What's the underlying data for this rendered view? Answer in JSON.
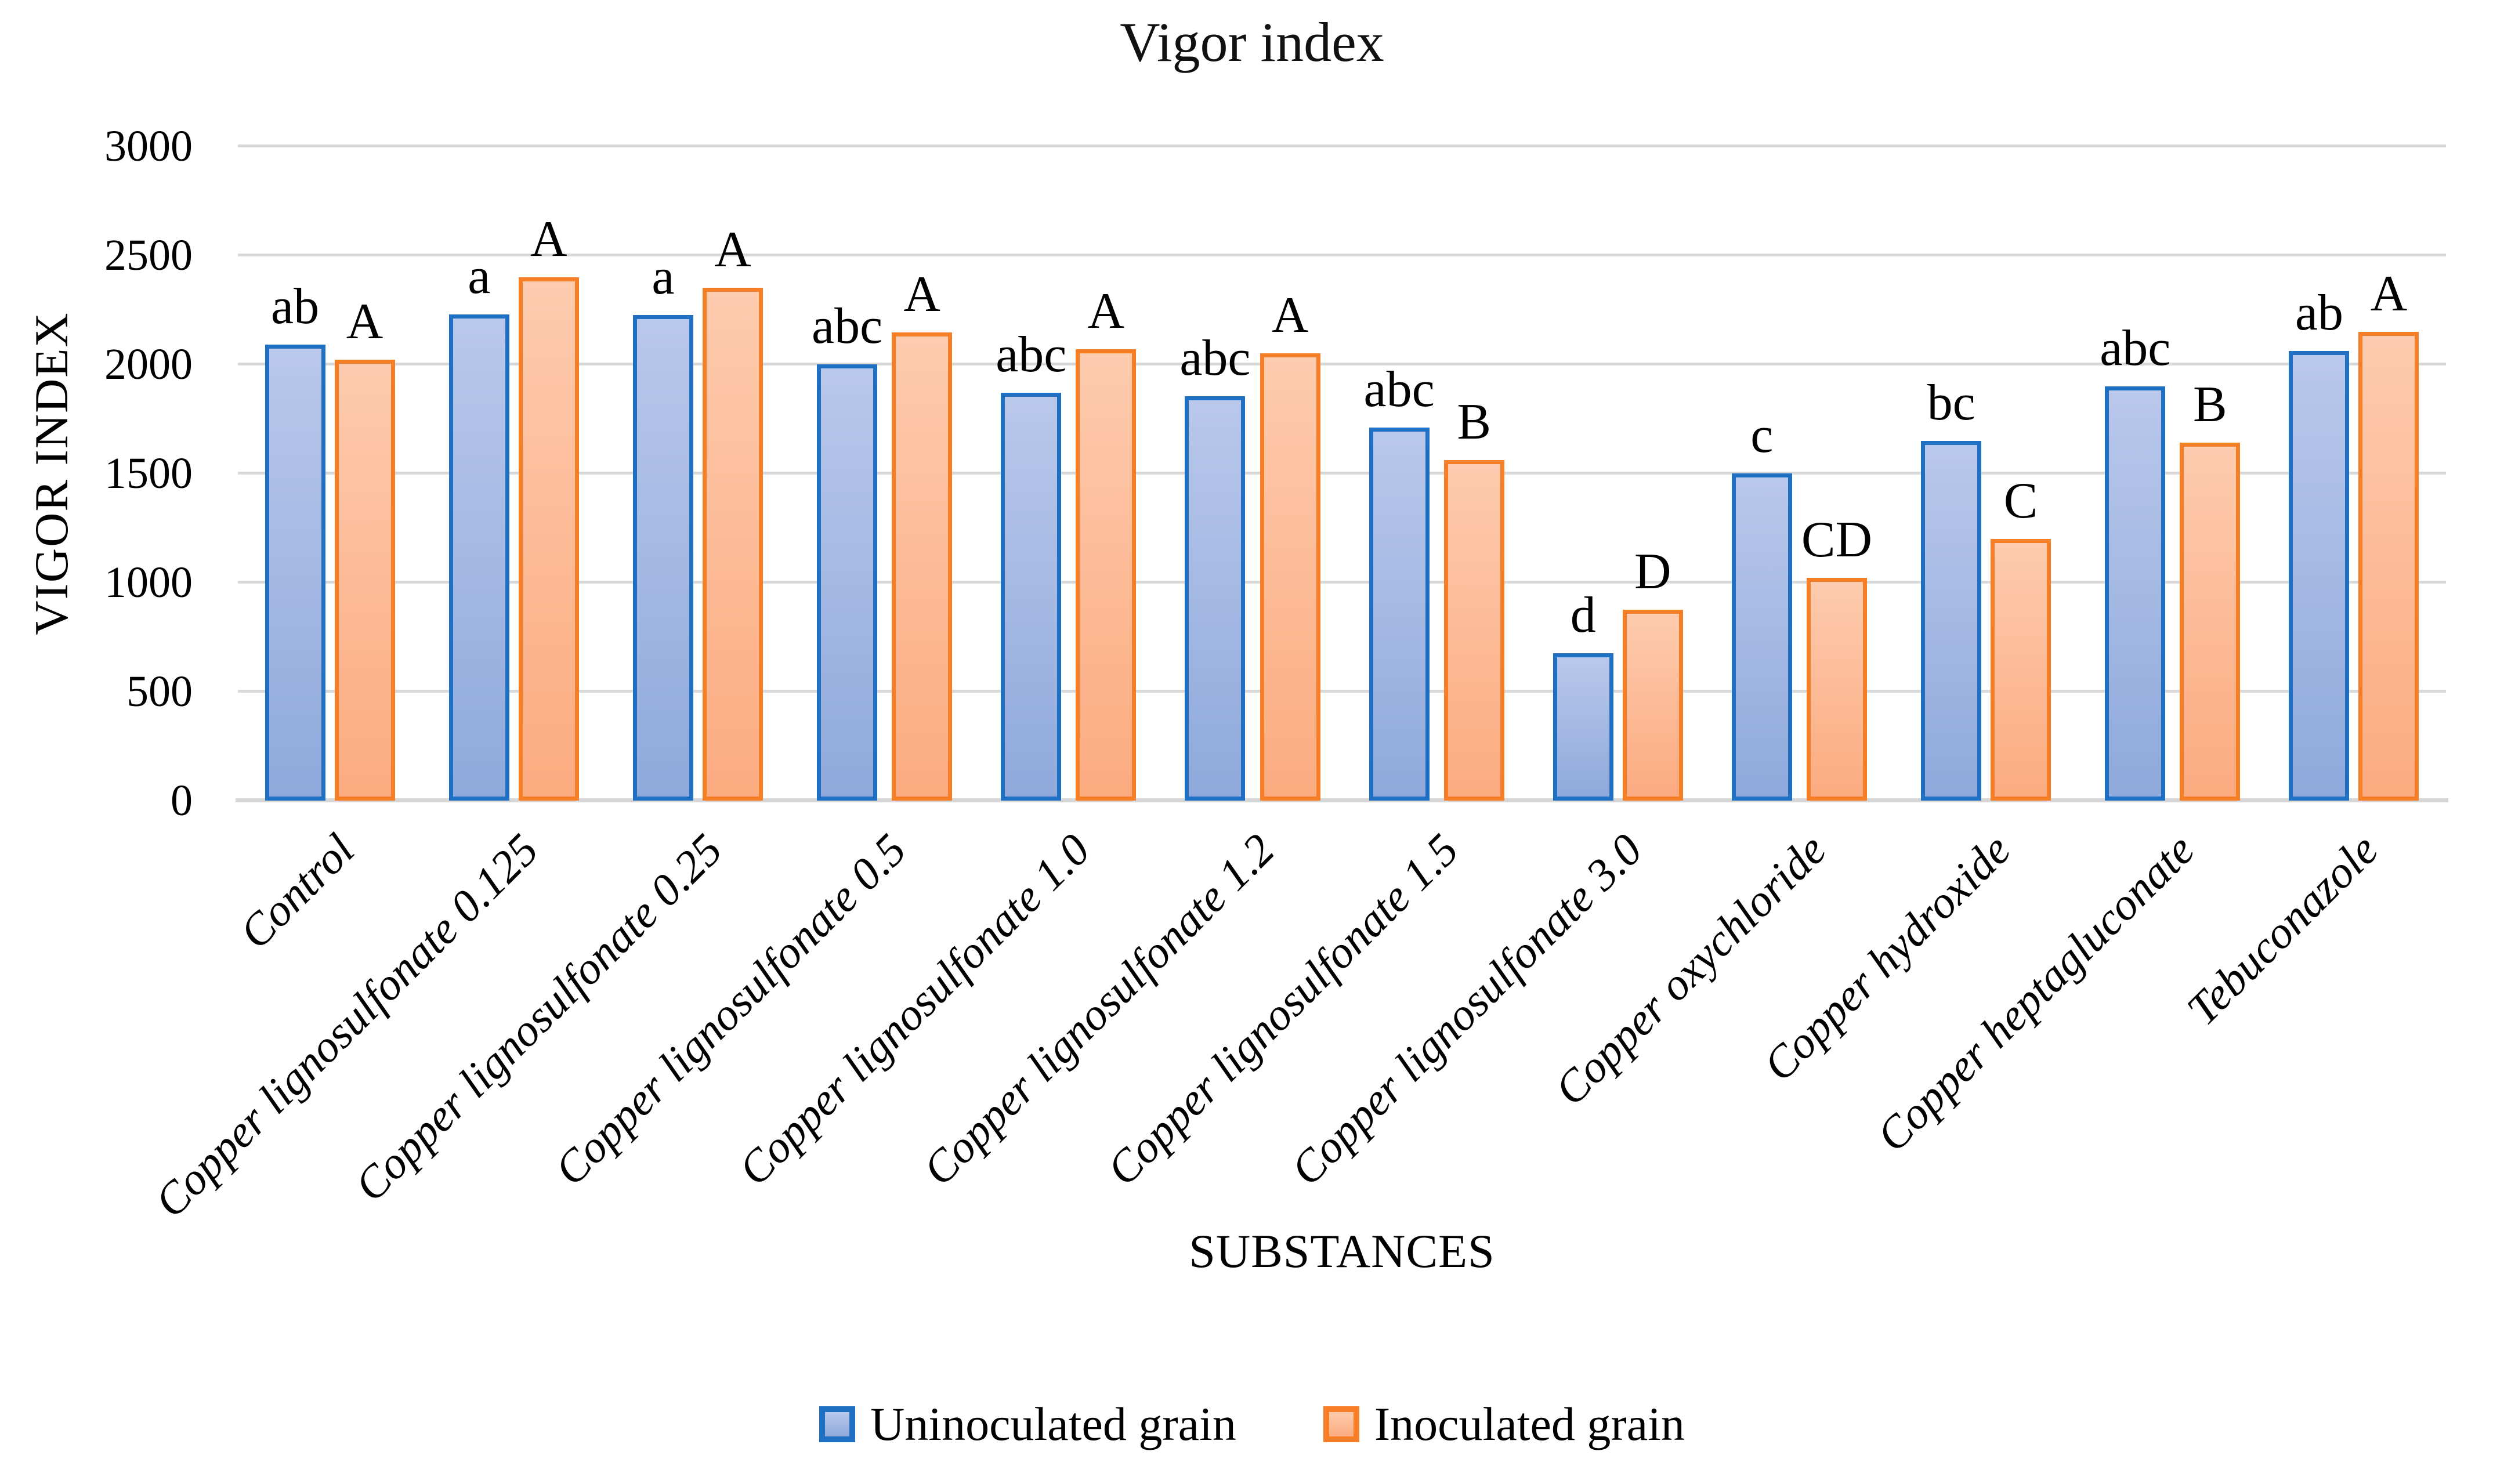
{
  "chart_data": {
    "type": "bar",
    "title": "Vigor index",
    "xlabel": "SUBSTANCES",
    "ylabel": "VIGOR INDEX",
    "ylim": [
      0,
      3000
    ],
    "yticks": [
      0,
      500,
      1000,
      1500,
      2000,
      2500,
      3000
    ],
    "grid": true,
    "legend_position": "bottom",
    "categories": [
      "Control",
      "Copper lignosulfonate 0.125",
      "Copper lignosulfonate 0.25",
      "Copper lignosulfonate 0.5",
      "Copper lignosulfonate 1.0",
      "Copper lignosulfonate 1.2",
      "Copper lignosulfonate 1.5",
      "Copper lignosulfonate 3.0",
      "Copper oxychloride",
      "Copper hydroxide",
      "Copper heptagluconate",
      "Tebuconazole"
    ],
    "series": [
      {
        "name": "Uninoculated grain",
        "values": [
          2090,
          2230,
          2225,
          2000,
          1870,
          1855,
          1710,
          675,
          1500,
          1650,
          1900,
          2060
        ],
        "labels": [
          "ab",
          "a",
          "a",
          "abc",
          "abc",
          "abc",
          "abc",
          "d",
          "c",
          "bc",
          "abc",
          "ab"
        ],
        "fill_top": "#B9C8EB",
        "fill_bottom": "#8FA9DC",
        "border": "#1F6FC2"
      },
      {
        "name": "Inoculated grain",
        "values": [
          2020,
          2400,
          2350,
          2145,
          2070,
          2050,
          1560,
          875,
          1020,
          1200,
          1640,
          2150
        ],
        "labels": [
          "A",
          "A",
          "A",
          "A",
          "A",
          "A",
          "B",
          "D",
          "CD",
          "C",
          "B",
          "A"
        ],
        "fill_top": "#FDCBAE",
        "fill_bottom": "#FCAB80",
        "border": "#F57E27"
      }
    ],
    "colors": {
      "gridline": "#DADADA",
      "baseline": "#D6D6D6",
      "text": "#000000",
      "background": "#FFFFFF"
    }
  }
}
